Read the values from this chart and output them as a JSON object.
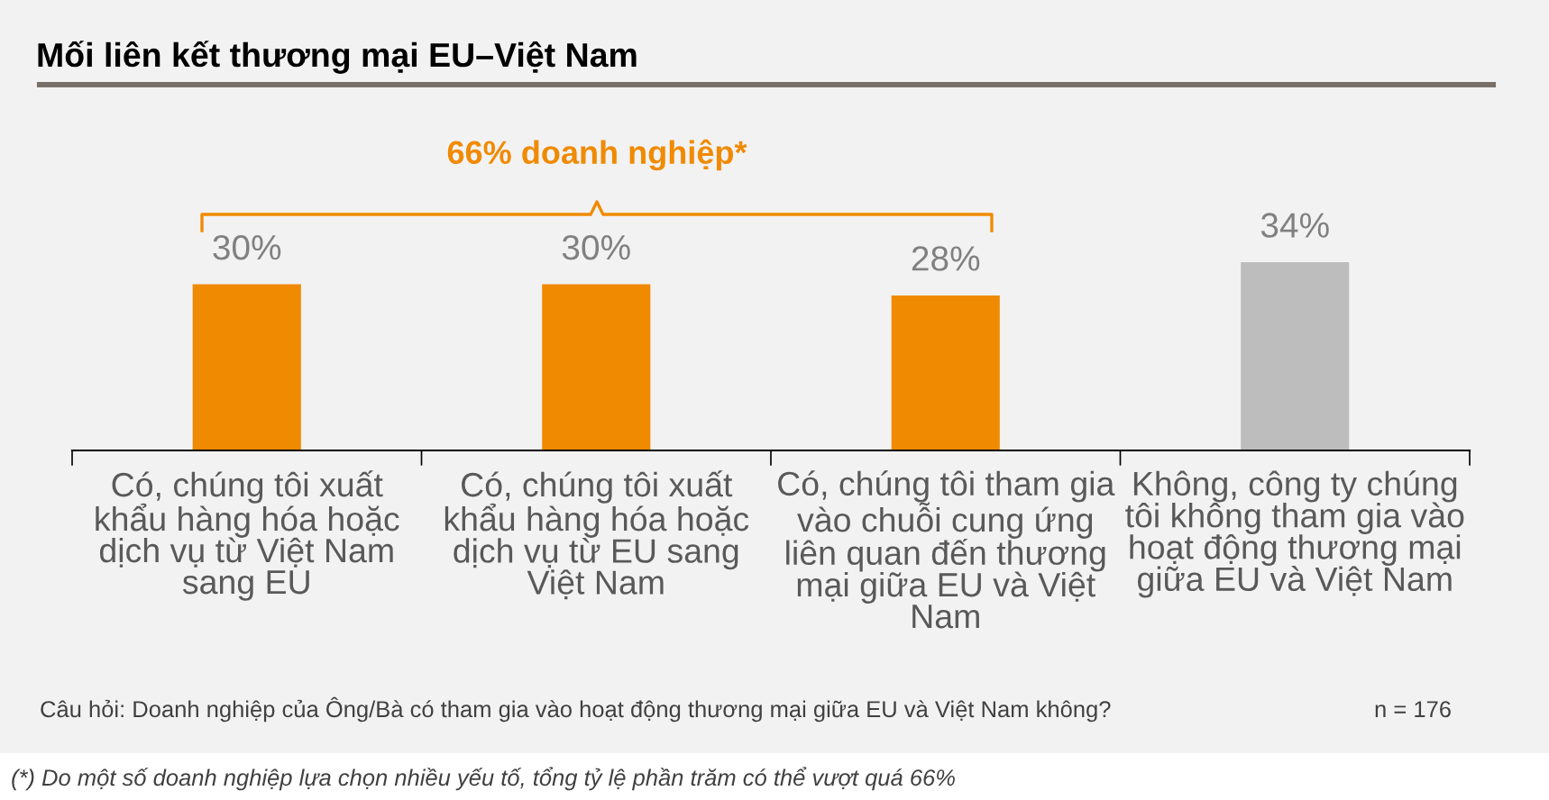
{
  "chart_data": {
    "type": "bar",
    "title": "Mối liên kết thương mại EU–Việt Nam",
    "categories": [
      "Có, chúng tôi xuất\nkhẩu hàng hóa hoặc\ndịch vụ từ Việt Nam\nsang EU",
      "Có, chúng tôi xuất\nkhẩu hàng hóa hoặc\ndịch vụ từ EU sang\nViệt Nam",
      "Có, chúng tôi tham gia\nvào chuỗi cung ứng\nliên quan đến thương\nmại giữa EU và Việt\nNam",
      "Không, công ty chúng\ntôi không tham gia vào\nhoạt động thương mại\ngiữa EU và Việt Nam"
    ],
    "values": [
      30,
      30,
      28,
      34
    ],
    "colors": [
      "#f08a00",
      "#f08a00",
      "#f08a00",
      "#bdbdbd"
    ],
    "data_labels": true,
    "value_labels": [
      "30%",
      "30%",
      "28%",
      "34%"
    ],
    "grid": false,
    "legend": false,
    "tick_labels": "x",
    "annotations": [
      "66% doanh nghiệp*",
      "Câu hỏi: Doanh nghiệp của Ông/Bà có tham gia vào hoạt động thương mại giữa EU và Việt Nam không?",
      "n = 176",
      "(*) Do một số doanh nghiệp lựa chọn nhiều yếu tố, tổng tỷ lệ phần trăm có thể vượt quá 66%"
    ]
  }
}
